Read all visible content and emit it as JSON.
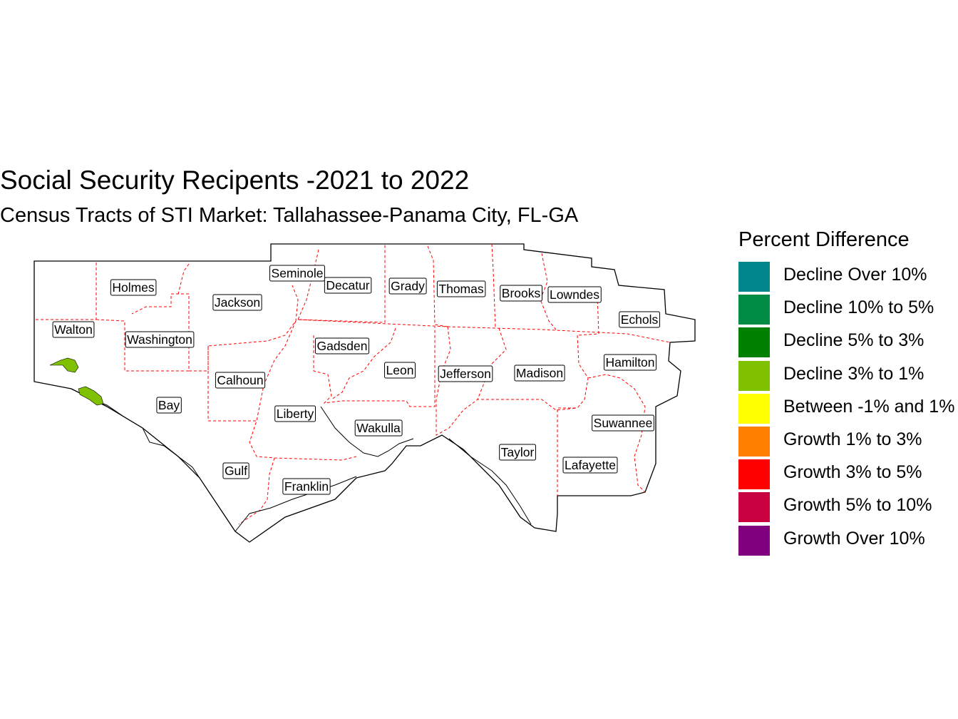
{
  "title": "Social Security Recipents -2021 to 2022",
  "subtitle": "Census Tracts of STI Market: Tallahassee-Panama City, FL-GA",
  "legend": {
    "title": "Percent Difference",
    "items": [
      {
        "label": "Decline Over 10%",
        "color": "#00868B"
      },
      {
        "label": "Decline 10% to 5%",
        "color": "#008B45"
      },
      {
        "label": "Decline 5% to 3%",
        "color": "#008000"
      },
      {
        "label": "Decline 3% to 1%",
        "color": "#7FC000"
      },
      {
        "label": "Between -1% and 1%",
        "color": "#FFFF00"
      },
      {
        "label": "Growth 1% to 3%",
        "color": "#FF8000"
      },
      {
        "label": "Growth 3% to 5%",
        "color": "#FF0000"
      },
      {
        "label": "Growth 5% to 10%",
        "color": "#C80040"
      },
      {
        "label": "Growth Over 10%",
        "color": "#800080"
      }
    ]
  },
  "counties": [
    "Holmes",
    "Seminole",
    "Decatur",
    "Grady",
    "Thomas",
    "Brooks",
    "Lowndes",
    "Echols",
    "Walton",
    "Jackson",
    "Washington",
    "Gadsden",
    "Leon",
    "Jefferson",
    "Madison",
    "Hamilton",
    "Calhoun",
    "Bay",
    "Liberty",
    "Wakulla",
    "Taylor",
    "Suwannee",
    "Gulf",
    "Franklin",
    "Lafayette"
  ],
  "colors": {
    "county_border": "#FF0000",
    "outline": "#000000",
    "highlight": "#7FC000"
  }
}
